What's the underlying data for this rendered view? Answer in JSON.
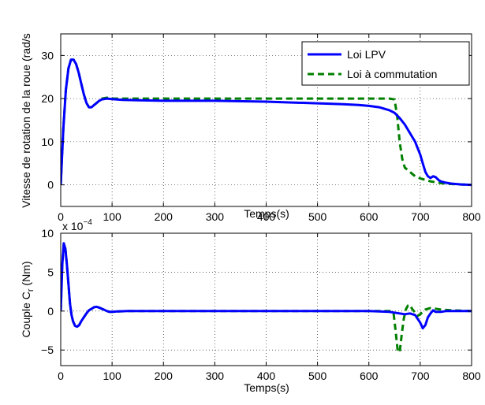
{
  "chart_data": [
    {
      "type": "line",
      "xlabel": "Temps(s)",
      "ylabel": "Vitesse de rotation de la roue (rad/s",
      "xlim": [
        0,
        800
      ],
      "ylim": [
        -5,
        35
      ],
      "xticks": [
        "0",
        "100",
        "200",
        "300",
        "400",
        "500",
        "600",
        "700",
        "800"
      ],
      "yticks": [
        "0",
        "10",
        "20",
        "30"
      ],
      "grid": true,
      "legend_position": "top-right",
      "series": [
        {
          "name": "Loi LPV",
          "color": "#0000ff",
          "style": "solid",
          "x": [
            0,
            5,
            10,
            15,
            20,
            25,
            30,
            35,
            40,
            45,
            50,
            55,
            60,
            65,
            70,
            75,
            80,
            90,
            100,
            110,
            120,
            150,
            200,
            300,
            400,
            450,
            500,
            550,
            580,
            600,
            620,
            640,
            650,
            660,
            670,
            680,
            690,
            700,
            705,
            710,
            715,
            720,
            725,
            730,
            735,
            740,
            750,
            760,
            780,
            800
          ],
          "y": [
            0,
            13,
            22,
            27,
            29,
            29,
            28,
            26,
            23.5,
            21,
            19,
            18,
            18,
            18.5,
            19,
            19.5,
            19.8,
            20,
            19.9,
            19.8,
            19.7,
            19.6,
            19.5,
            19.5,
            19.3,
            19.1,
            18.9,
            18.7,
            18.5,
            18.3,
            18,
            17.3,
            16.7,
            15.5,
            14,
            12,
            10,
            7,
            5,
            3,
            2,
            1.6,
            2,
            1.8,
            1.2,
            0.8,
            0.5,
            0.3,
            0.1,
            0
          ]
        },
        {
          "name": "Loi à commutation",
          "color": "#008000",
          "style": "dashed",
          "x": [
            0,
            5,
            10,
            15,
            20,
            25,
            30,
            35,
            40,
            45,
            50,
            55,
            60,
            65,
            70,
            75,
            80,
            90,
            100,
            110,
            120,
            150,
            200,
            300,
            400,
            500,
            600,
            640,
            650,
            655,
            660,
            665,
            670,
            680,
            690,
            700,
            720,
            740,
            760,
            780,
            800
          ],
          "y": [
            0,
            13,
            22,
            27,
            29,
            29,
            28,
            26,
            23.5,
            21,
            19,
            18,
            18,
            18.5,
            19,
            19.5,
            20,
            20.2,
            20,
            20,
            20,
            20,
            20,
            20,
            20,
            20,
            20,
            20,
            19.8,
            16,
            10,
            6,
            4,
            3,
            2,
            1.5,
            0.8,
            0.4,
            0.2,
            0.1,
            0
          ]
        }
      ]
    },
    {
      "type": "line",
      "xlabel": "Temps(s)",
      "ylabel": "Couple C",
      "ylabel_subscript": "r",
      "ylabel_suffix": " (Nm)",
      "y_multiplier": "x 10",
      "y_multiplier_exp": "−4",
      "xlim": [
        0,
        800
      ],
      "ylim": [
        -7,
        10
      ],
      "xticks": [
        "0",
        "100",
        "200",
        "300",
        "400",
        "500",
        "600",
        "700",
        "800"
      ],
      "yticks": [
        "−5",
        "0",
        "5",
        "10"
      ],
      "grid": true,
      "series": [
        {
          "name": "Loi LPV",
          "color": "#0000ff",
          "style": "solid",
          "x": [
            0,
            3,
            6,
            9,
            12,
            15,
            18,
            21,
            24,
            28,
            32,
            36,
            40,
            45,
            50,
            55,
            60,
            65,
            70,
            75,
            80,
            85,
            90,
            95,
            100,
            110,
            130,
            200,
            300,
            400,
            500,
            600,
            640,
            660,
            670,
            680,
            690,
            700,
            705,
            710,
            715,
            720,
            725,
            730,
            740,
            750,
            760,
            780,
            800
          ],
          "y": [
            0,
            6,
            8.7,
            8,
            6,
            3.5,
            1,
            -0.5,
            -1.3,
            -1.9,
            -2,
            -1.8,
            -1.3,
            -0.8,
            -0.3,
            0.1,
            0.3,
            0.5,
            0.55,
            0.45,
            0.3,
            0.15,
            0,
            -0.1,
            -0.1,
            -0.05,
            0,
            0,
            0,
            0,
            0,
            0,
            -0.1,
            -0.3,
            -0.4,
            -0.3,
            -0.5,
            -1.5,
            -2.2,
            -1.8,
            -0.8,
            -0.3,
            0.1,
            -0.1,
            -0.1,
            0,
            0,
            0,
            0
          ]
        },
        {
          "name": "Loi à commutation",
          "color": "#008000",
          "style": "dashed",
          "x": [
            0,
            3,
            6,
            9,
            12,
            15,
            18,
            21,
            24,
            28,
            32,
            36,
            40,
            45,
            50,
            55,
            60,
            65,
            70,
            75,
            80,
            85,
            90,
            95,
            100,
            110,
            130,
            200,
            300,
            400,
            500,
            600,
            640,
            648,
            652,
            656,
            660,
            664,
            668,
            672,
            676,
            680,
            684,
            690,
            695,
            700,
            710,
            720,
            740,
            760,
            780,
            800
          ],
          "y": [
            0,
            6,
            8.7,
            8,
            6,
            3.5,
            1,
            -0.5,
            -1.3,
            -1.9,
            -2,
            -1.8,
            -1.3,
            -0.8,
            -0.3,
            0.1,
            0.3,
            0.5,
            0.55,
            0.45,
            0.3,
            0.15,
            0,
            -0.1,
            -0.1,
            -0.05,
            0,
            0,
            0,
            0,
            0,
            0,
            0,
            -0.2,
            -2.5,
            -5,
            -5.3,
            -3,
            -1,
            0.2,
            0.7,
            0.8,
            0.3,
            -0.2,
            -0.6,
            -0.4,
            0.2,
            0.4,
            0.2,
            0.1,
            0.05,
            0
          ]
        }
      ]
    }
  ]
}
